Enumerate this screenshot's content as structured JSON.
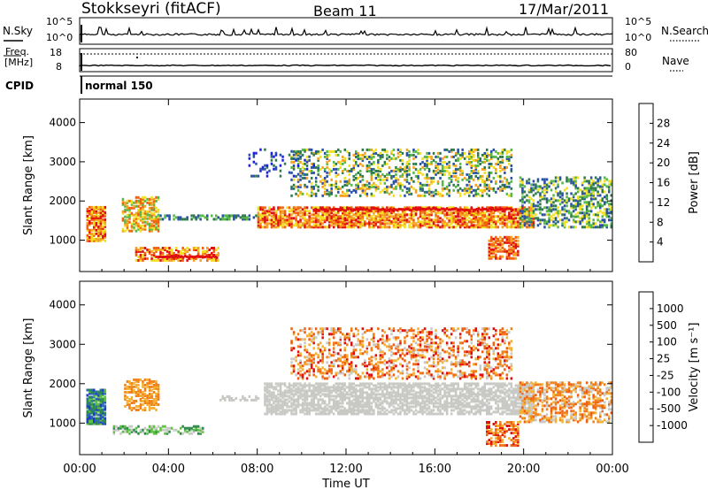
{
  "header": {
    "station": "Stokkseyri (fitACF)",
    "beam": "Beam 11",
    "date": "17/Mar/2011"
  },
  "nsky_panel": {
    "left_label": "N.Sky",
    "right_label": "N.Search",
    "y_ticks": [
      "10^5",
      "10^0"
    ]
  },
  "freq_panel": {
    "left_label_1": "Freq.",
    "left_label_2": "[MHz]",
    "left_ticks": [
      "18",
      "8"
    ],
    "right_label": "Nave",
    "right_ticks": [
      "80",
      "0"
    ]
  },
  "cpid_panel": {
    "label": "CPID",
    "program": "normal 150"
  },
  "chart_data": [
    {
      "type": "heatmap",
      "name": "power",
      "ylabel": "Slant Range [km]",
      "ylim": [
        200,
        4600
      ],
      "y_ticks": [
        1000,
        2000,
        3000,
        4000
      ],
      "xlim": [
        0,
        24
      ],
      "colorbar": {
        "label": "Power [dB]",
        "ticks": [
          "28",
          "24",
          "20",
          "16",
          "12",
          "8",
          "4"
        ],
        "colors": [
          "#1e1ee0",
          "#2a50a8",
          "#2e7a4a",
          "#56b848",
          "#f0e020",
          "#f4a020",
          "#f06010",
          "#e01010"
        ]
      }
    },
    {
      "type": "heatmap",
      "name": "velocity",
      "ylabel": "Slant Range [km]",
      "ylim": [
        200,
        4600
      ],
      "y_ticks": [
        1000,
        2000,
        3000,
        4000
      ],
      "xlim": [
        0,
        24
      ],
      "xlabel": "Time UT",
      "x_ticks": [
        "00:00",
        "04:00",
        "08:00",
        "12:00",
        "16:00",
        "20:00",
        "00:00"
      ],
      "colorbar": {
        "label": "Velocity [m s⁻¹]",
        "ticks": [
          "1000",
          "500",
          "100",
          "25",
          "-25",
          "-100",
          "-500",
          "-1000"
        ],
        "colors": [
          "#1e3cc8",
          "#2a6ab0",
          "#2e8a4a",
          "#5cc040",
          "#c8c8c4",
          "#f4b030",
          "#f08018",
          "#f06010",
          "#e01010"
        ]
      }
    }
  ]
}
